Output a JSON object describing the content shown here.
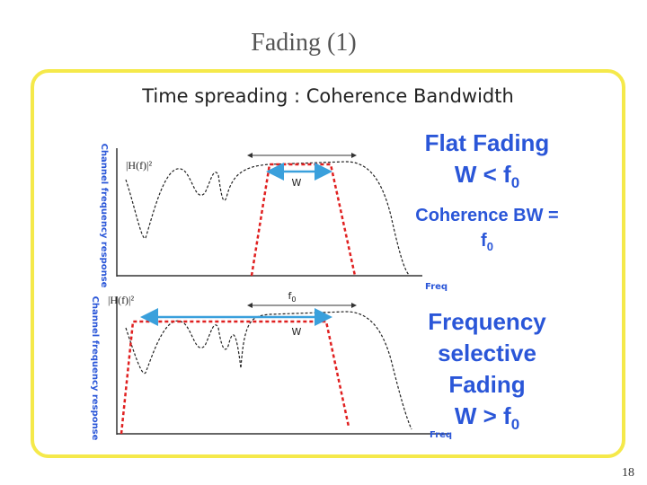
{
  "title": "Fading (1)",
  "subtitle": "Time spreading : Coherence Bandwidth",
  "top_plot": {
    "y_label": "Channel frequency response",
    "h_label": "|H(f)|²",
    "x_label": "Freq",
    "w_label": "W"
  },
  "bottom_plot": {
    "y_label": "Channel frequency response",
    "h_label": "|H(f)|²",
    "x_label": "Freq",
    "w_label": "W",
    "f0_label": {
      "main": "f",
      "sub": "0"
    }
  },
  "flat": {
    "heading": "Flat Fading",
    "condition": {
      "main": "W < f",
      "sub": "0"
    },
    "definition": "Coherence BW =",
    "definition_value": {
      "main": "f",
      "sub": "0"
    }
  },
  "selective": {
    "lines": [
      "Frequency",
      "selective",
      "Fading"
    ],
    "condition": {
      "main": "W > f",
      "sub": "0"
    }
  },
  "page_number": "18"
}
